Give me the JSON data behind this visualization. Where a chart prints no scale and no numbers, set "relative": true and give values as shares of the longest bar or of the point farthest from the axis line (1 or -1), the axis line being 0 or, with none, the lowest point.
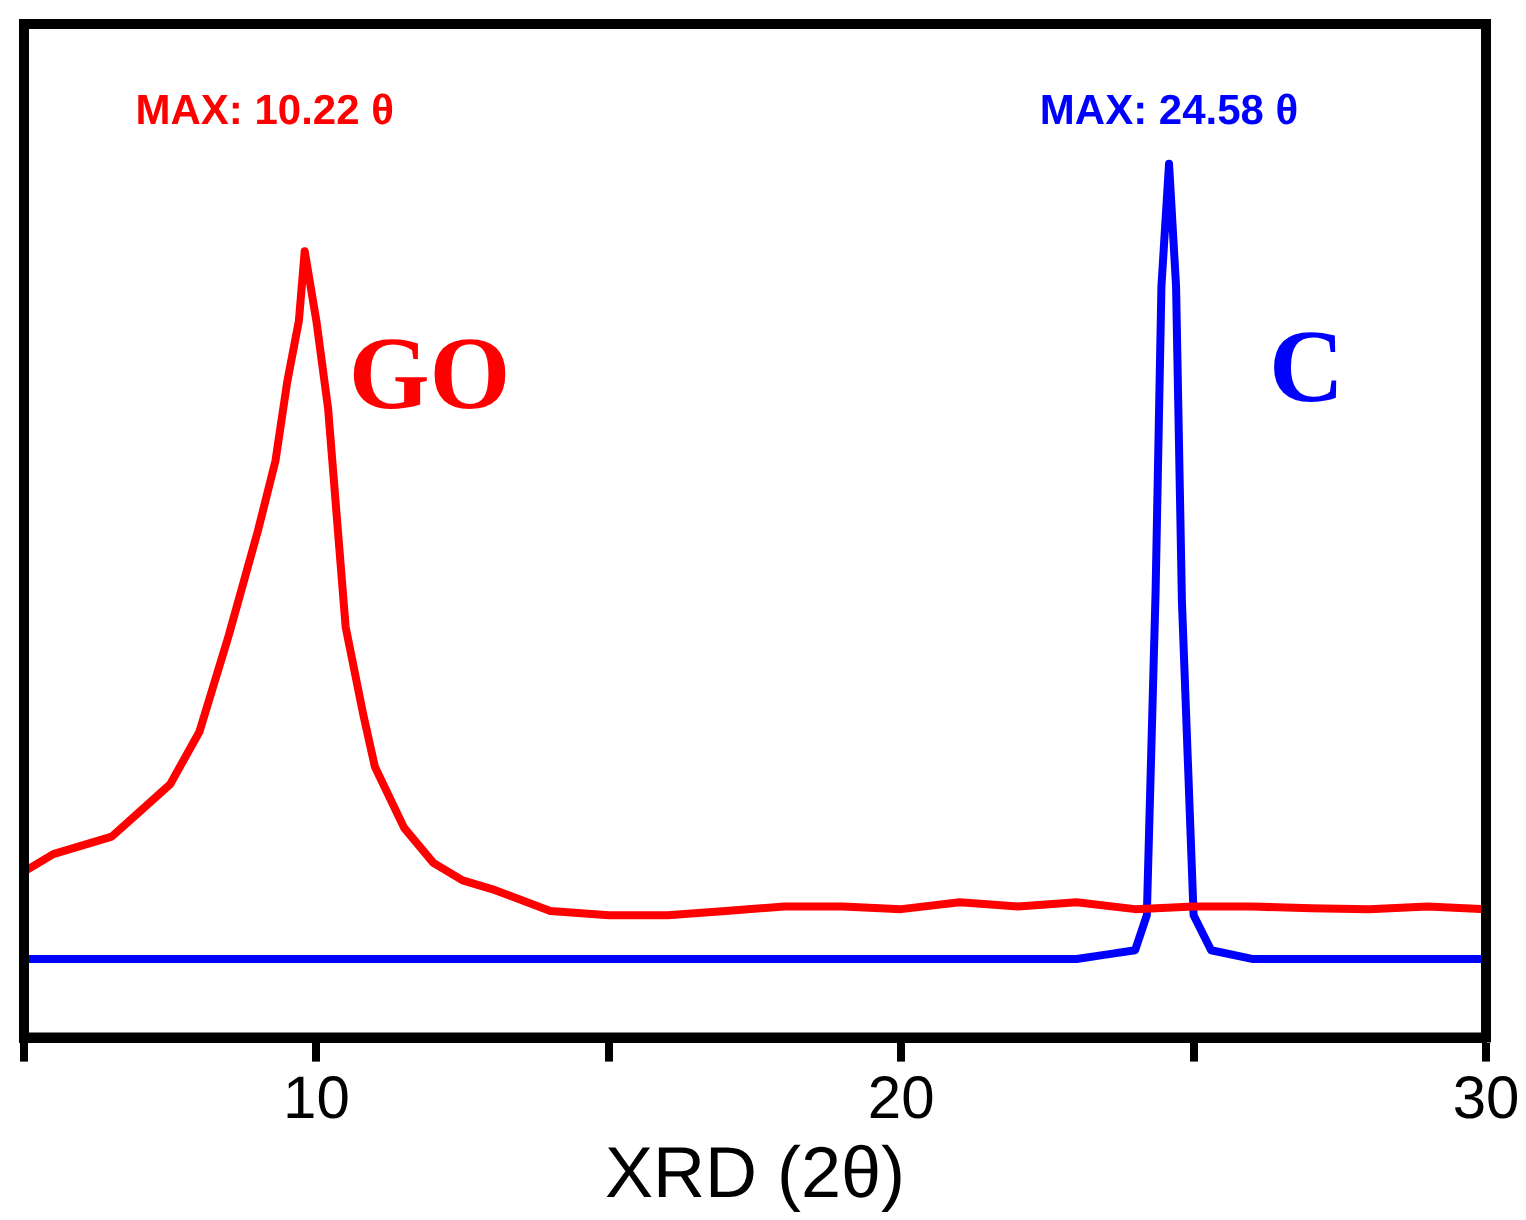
{
  "chart_data": {
    "type": "line",
    "xlabel": "XRD (2θ)",
    "relative": true,
    "xlim": [
      5,
      30
    ],
    "xticks": [
      {
        "value": 5,
        "label": null
      },
      10,
      {
        "value": 15,
        "label": null
      },
      20,
      {
        "value": 25,
        "label": null
      },
      30
    ],
    "grid": false,
    "legend": false,
    "marker": "none",
    "line_style": "solid",
    "annotations": [
      "MAX: 10.22 θ",
      "MAX: 24.58 θ"
    ],
    "series": [
      {
        "name": "GO",
        "color": "#ff0000",
        "x": [
          5,
          5.5,
          6,
          6.5,
          7,
          7.5,
          8,
          8.5,
          9,
          9.3,
          9.5,
          9.7,
          9.8,
          10,
          10.2,
          10.5,
          10.8,
          11,
          11.5,
          12,
          12.5,
          13,
          14,
          15,
          16,
          17,
          18,
          19,
          20,
          21,
          22,
          23,
          24,
          25,
          26,
          27,
          28,
          29,
          30
        ],
        "values": [
          0.19,
          0.21,
          0.22,
          0.23,
          0.26,
          0.29,
          0.35,
          0.46,
          0.58,
          0.66,
          0.75,
          0.82,
          0.9,
          0.82,
          0.72,
          0.47,
          0.37,
          0.31,
          0.24,
          0.2,
          0.18,
          0.17,
          0.145,
          0.14,
          0.14,
          0.145,
          0.15,
          0.15,
          0.147,
          0.155,
          0.15,
          0.155,
          0.147,
          0.15,
          0.15,
          0.148,
          0.147,
          0.15,
          0.147
        ]
      },
      {
        "name": "C",
        "color": "#0000ff",
        "x": [
          5,
          10,
          15,
          20,
          23,
          23.5,
          24,
          24.2,
          24.35,
          24.45,
          24.58,
          24.7,
          24.8,
          25,
          25.3,
          26,
          30
        ],
        "values": [
          0.09,
          0.09,
          0.09,
          0.09,
          0.09,
          0.095,
          0.1,
          0.14,
          0.51,
          0.86,
          1,
          0.86,
          0.5,
          0.14,
          0.1,
          0.09,
          0.09
        ]
      }
    ]
  }
}
